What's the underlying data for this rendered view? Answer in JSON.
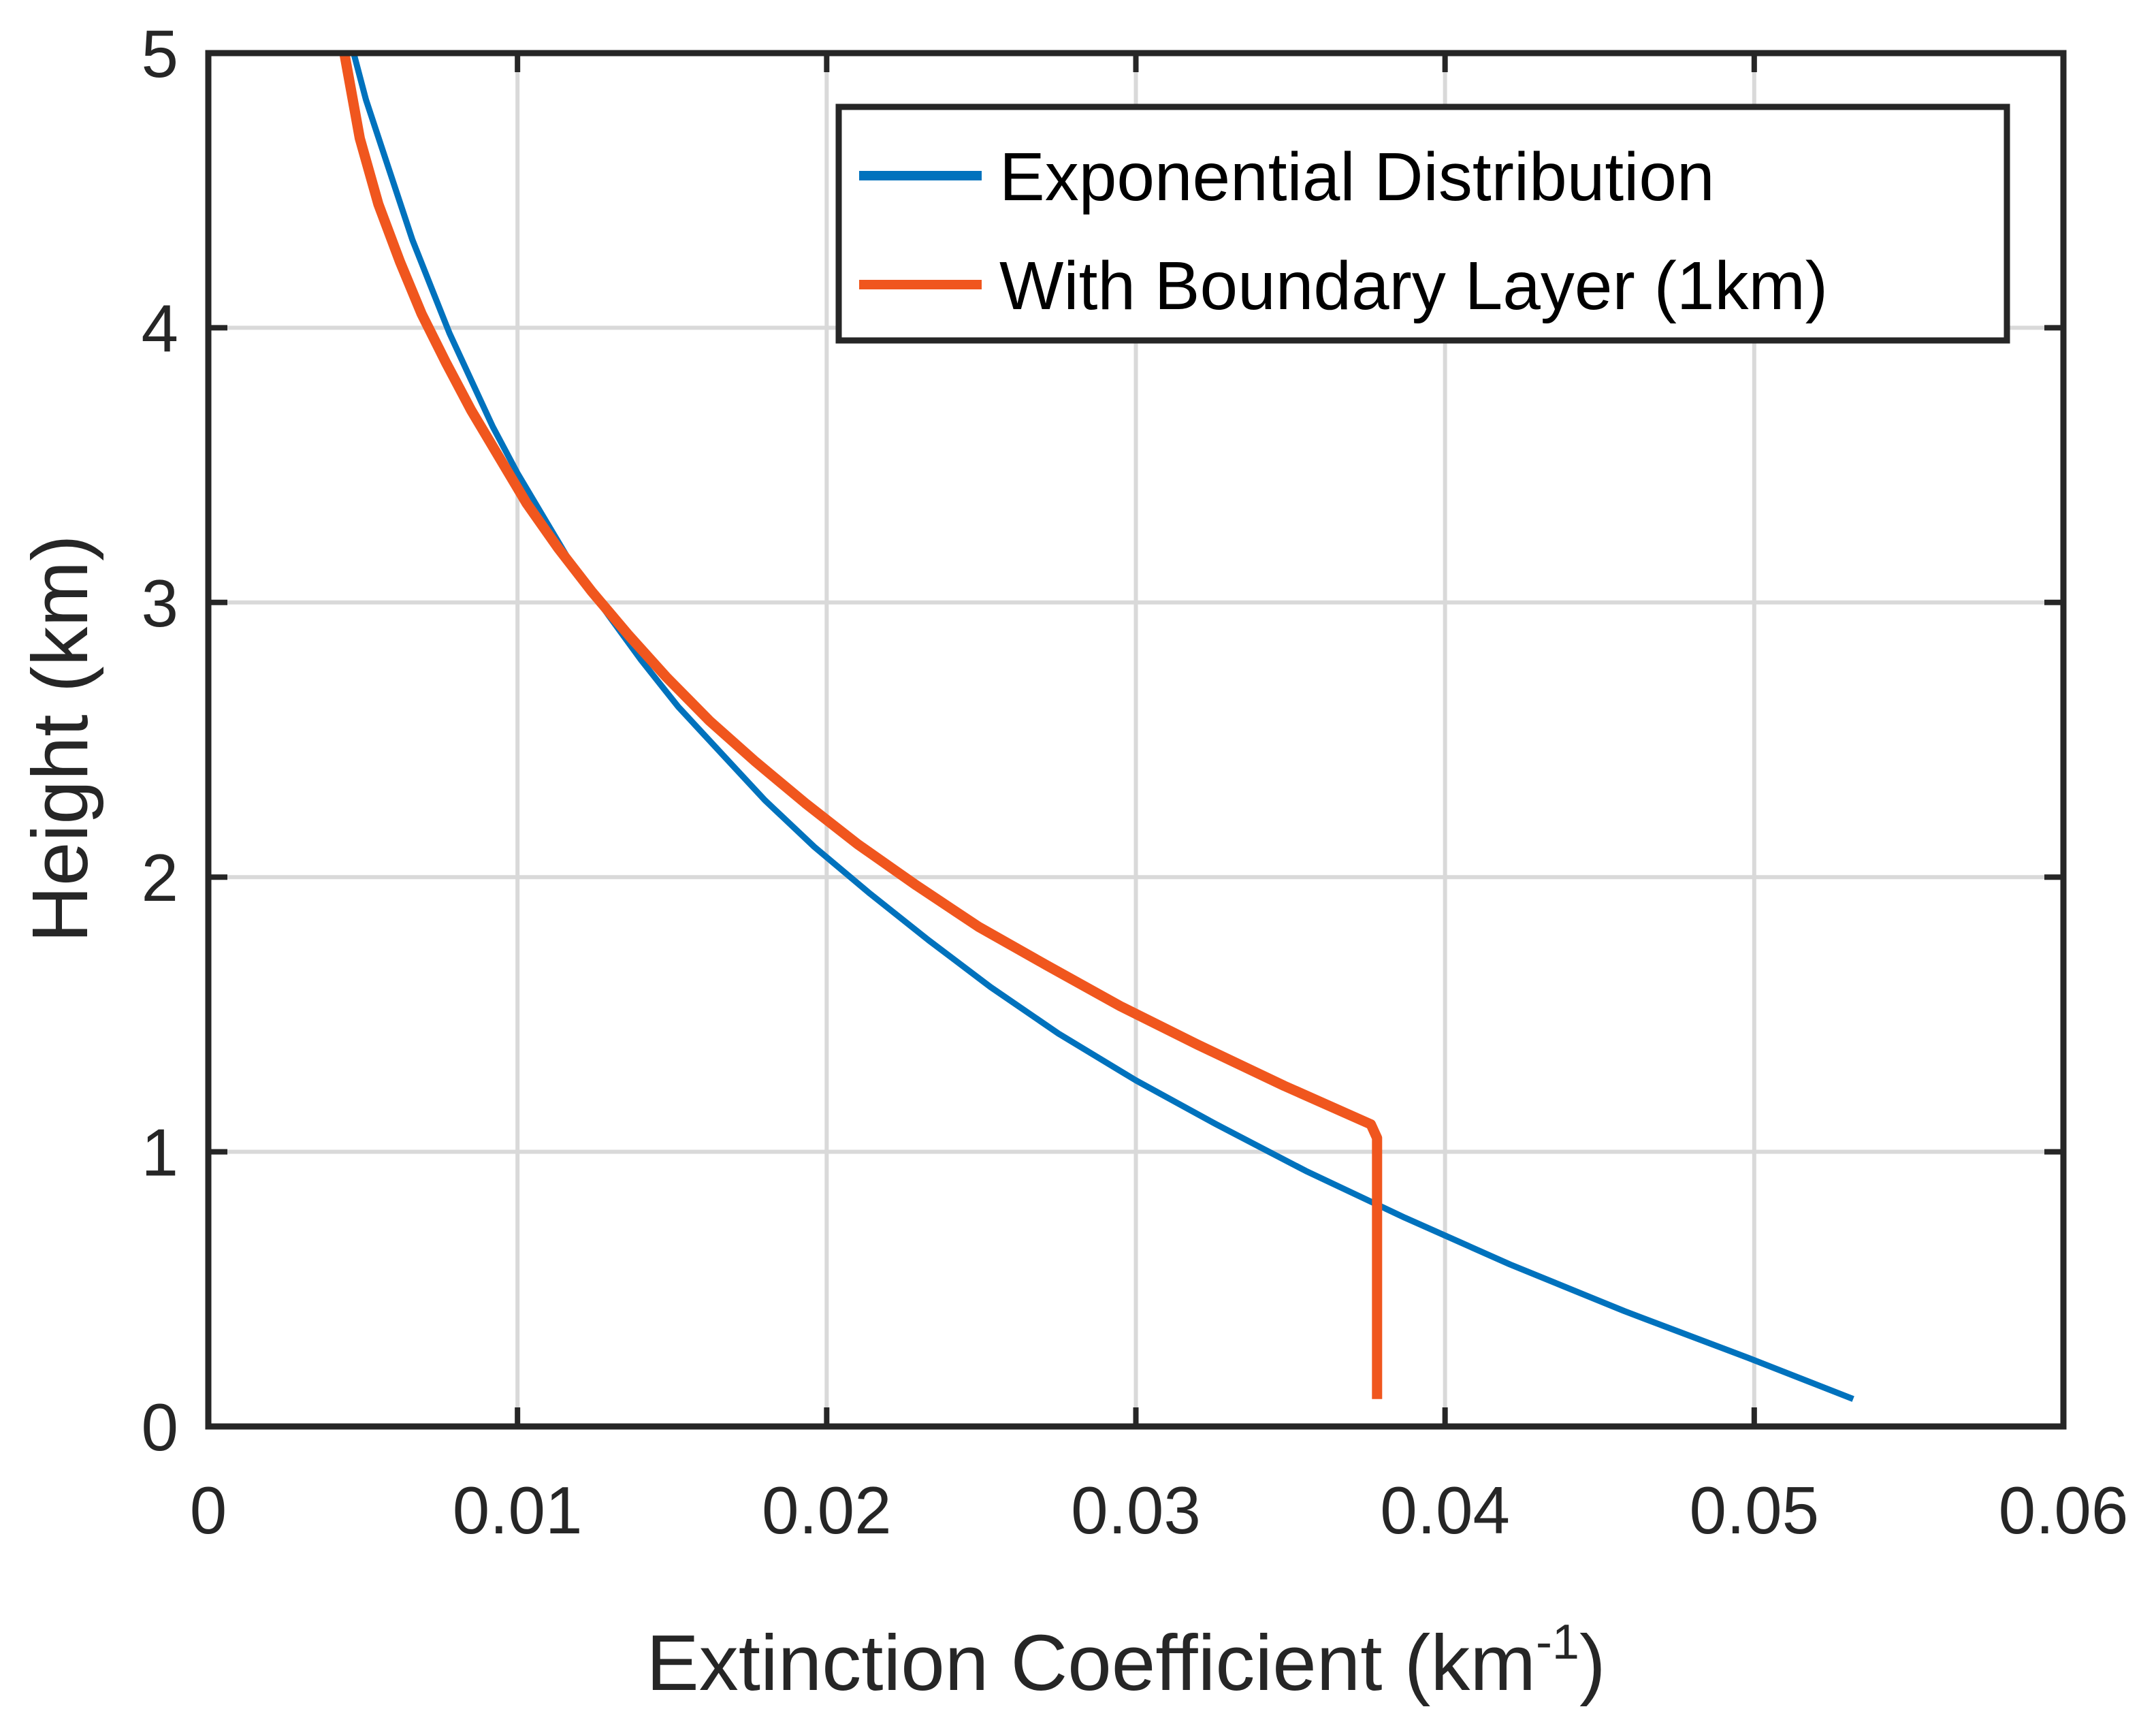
{
  "chart_data": {
    "type": "line",
    "title": "",
    "xlabel": "Extinction Coefficient (km",
    "xlabel_superscript": "-1",
    "xlabel_suffix": ")",
    "ylabel": "Height (km)",
    "xlim": [
      0,
      0.06
    ],
    "ylim": [
      0,
      5
    ],
    "xticks": [
      0,
      0.01,
      0.02,
      0.03,
      0.04,
      0.05,
      0.06
    ],
    "xtick_labels": [
      "0",
      "0.01",
      "0.02",
      "0.03",
      "0.04",
      "0.05",
      "0.06"
    ],
    "yticks": [
      0,
      1,
      2,
      3,
      4,
      5
    ],
    "ytick_labels": [
      "0",
      "1",
      "2",
      "3",
      "4",
      "5"
    ],
    "grid": true,
    "legend_position": "top-right",
    "series": [
      {
        "name": "Exponential Distribution",
        "color": "#0072BD",
        "x": [
          0.0532,
          0.0498,
          0.0458,
          0.0421,
          0.0387,
          0.0355,
          0.0326,
          0.03,
          0.0275,
          0.0253,
          0.0233,
          0.0214,
          0.0196,
          0.018,
          0.0166,
          0.0152,
          0.014,
          0.0129,
          0.0118,
          0.0109,
          0.01,
          0.0092,
          0.0085,
          0.0078,
          0.0072,
          0.0066,
          0.0061,
          0.0056,
          0.0051,
          0.0047
        ],
        "y": [
          0.1,
          0.25,
          0.42,
          0.59,
          0.76,
          0.93,
          1.1,
          1.26,
          1.43,
          1.6,
          1.77,
          1.94,
          2.11,
          2.28,
          2.45,
          2.62,
          2.79,
          2.96,
          3.13,
          3.3,
          3.47,
          3.64,
          3.81,
          3.98,
          4.15,
          4.32,
          4.49,
          4.66,
          4.83,
          5.0
        ]
      },
      {
        "name": "With Boundary Layer (1km)",
        "color": "#F0561E",
        "x": [
          0.0378,
          0.0378,
          0.0376,
          0.0348,
          0.032,
          0.0295,
          0.0271,
          0.0249,
          0.0229,
          0.021,
          0.0193,
          0.0177,
          0.0162,
          0.0148,
          0.0136,
          0.0124,
          0.0113,
          0.0103,
          0.0094,
          0.0085,
          0.0077,
          0.0069,
          0.0062,
          0.0055,
          0.0049,
          0.0044
        ],
        "y": [
          0.1,
          1.05,
          1.1,
          1.24,
          1.39,
          1.53,
          1.68,
          1.82,
          1.97,
          2.12,
          2.27,
          2.42,
          2.57,
          2.73,
          2.88,
          3.04,
          3.2,
          3.36,
          3.53,
          3.7,
          3.87,
          4.05,
          4.24,
          4.45,
          4.69,
          5.0
        ]
      }
    ]
  }
}
